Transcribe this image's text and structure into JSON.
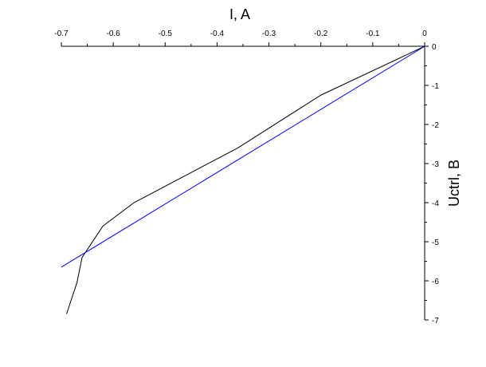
{
  "chart_data": {
    "type": "line",
    "xlabel": "I, A",
    "ylabel": "Uctrl, B",
    "xlim": [
      -0.7,
      0
    ],
    "ylim": [
      -7,
      0
    ],
    "x_ticks": [
      -0.7,
      -0.6,
      -0.5,
      -0.4,
      -0.3,
      -0.2,
      -0.1,
      0
    ],
    "x_tick_labels": [
      "-0.7",
      "-0.6",
      "-0.5",
      "-0.4",
      "-0.3",
      "-0.2",
      "-0.1",
      "0"
    ],
    "y_ticks": [
      0,
      -1,
      -2,
      -3,
      -4,
      -5,
      -6,
      -7
    ],
    "y_tick_labels": [
      "0",
      "-1",
      "-2",
      "-3",
      "-4",
      "-5",
      "-6",
      "-7"
    ],
    "x_axis_position": "top",
    "y_axis_position": "right",
    "grid": false,
    "series": [
      {
        "color": "#000000",
        "points": [
          {
            "x": 0.0,
            "y": 0.0
          },
          {
            "x": -0.2,
            "y": -1.25
          },
          {
            "x": -0.36,
            "y": -2.6
          },
          {
            "x": -0.56,
            "y": -4.0
          },
          {
            "x": -0.62,
            "y": -4.6
          },
          {
            "x": -0.66,
            "y": -5.4
          },
          {
            "x": -0.67,
            "y": -6.05
          },
          {
            "x": -0.69,
            "y": -6.85
          }
        ]
      },
      {
        "color": "#0000ff",
        "points": [
          {
            "x": 0.0,
            "y": 0.0
          },
          {
            "x": -0.7,
            "y": -5.65
          }
        ]
      }
    ]
  }
}
